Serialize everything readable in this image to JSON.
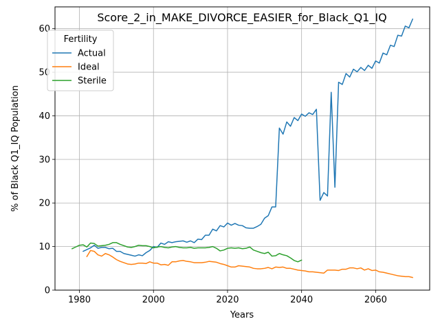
{
  "chart_data": {
    "type": "line",
    "title": "Score_2_in_MAKE_DIVORCE_EASIER_for_Black_Q1_IQ",
    "xlabel": "Years",
    "ylabel": "% of Black Q1_IQ Population",
    "xlim": [
      1973.4,
      1974.6
    ],
    "ylim": [
      0,
      65
    ],
    "xticks": [
      1980,
      2000,
      2020,
      2040,
      2060
    ],
    "yticks": [
      0,
      10,
      20,
      30,
      40,
      50,
      60
    ],
    "grid": true,
    "legend": {
      "title": "Fertility",
      "placement": "top-left"
    },
    "series": [
      {
        "name": "Actual",
        "color": "#1f77b4",
        "x": [
          1981,
          1982,
          1983,
          1984,
          1985,
          1986,
          1987,
          1988,
          1989,
          1990,
          1991,
          1992,
          1993,
          1994,
          1995,
          1996,
          1997,
          1998,
          1999,
          2000,
          2001,
          2002,
          2003,
          2004,
          2005,
          2006,
          2007,
          2008,
          2009,
          2010,
          2011,
          2012,
          2013,
          2014,
          2015,
          2016,
          2017,
          2018,
          2019,
          2020,
          2021,
          2022,
          2023,
          2024,
          2025,
          2026,
          2027,
          2028,
          2029,
          2030,
          2031,
          2032,
          2033,
          2034,
          2035,
          2036,
          2037,
          2038,
          2039,
          2040,
          2041,
          2042,
          2043,
          2044,
          2045,
          2046,
          2047,
          2048,
          2049,
          2050,
          2051,
          2052,
          2053,
          2054,
          2055,
          2056,
          2057,
          2058,
          2059,
          2060,
          2061,
          2062,
          2063,
          2064,
          2065,
          2066,
          2067,
          2068,
          2069,
          2070
        ],
        "y": [
          8.9,
          9.3,
          9.7,
          10.3,
          9.6,
          9.8,
          9.8,
          9.5,
          9.6,
          8.9,
          8.9,
          8.4,
          8.2,
          8.0,
          7.8,
          8.1,
          7.9,
          8.6,
          9.1,
          10.0,
          9.8,
          10.8,
          10.5,
          11.1,
          10.9,
          11.1,
          11.2,
          11.3,
          11.0,
          11.3,
          10.9,
          11.7,
          11.6,
          12.6,
          12.6,
          14.0,
          13.6,
          14.8,
          14.5,
          15.4,
          14.9,
          15.3,
          14.9,
          14.8,
          14.3,
          14.2,
          14.2,
          14.6,
          15.1,
          16.5,
          17.1,
          19.1,
          19.1,
          37.2,
          35.8,
          38.6,
          37.6,
          39.6,
          38.9,
          40.4,
          39.9,
          40.7,
          40.3,
          41.5,
          20.6,
          22.4,
          21.6,
          45.4,
          23.6,
          47.7,
          47.2,
          49.7,
          48.9,
          50.7,
          50.1,
          51.1,
          50.4,
          51.6,
          50.9,
          52.6,
          52.1,
          54.4,
          54.0,
          56.2,
          55.9,
          58.5,
          58.3,
          60.6,
          60.2,
          62.2
        ]
      },
      {
        "name": "Ideal",
        "color": "#ff7f0e",
        "x": [
          1982,
          1983,
          1984,
          1985,
          1986,
          1987,
          1988,
          1989,
          1990,
          1991,
          1992,
          1993,
          1994,
          1995,
          1996,
          1997,
          1998,
          1999,
          2000,
          2001,
          2002,
          2003,
          2004,
          2005,
          2006,
          2007,
          2008,
          2009,
          2010,
          2011,
          2012,
          2013,
          2014,
          2015,
          2016,
          2017,
          2018,
          2019,
          2020,
          2021,
          2022,
          2023,
          2024,
          2025,
          2026,
          2027,
          2028,
          2029,
          2030,
          2031,
          2032,
          2033,
          2034,
          2035,
          2036,
          2037,
          2038,
          2039,
          2040,
          2041,
          2042,
          2043,
          2044,
          2045,
          2046,
          2047,
          2048,
          2049,
          2050,
          2051,
          2052,
          2053,
          2054,
          2055,
          2056,
          2057,
          2058,
          2059,
          2060,
          2061,
          2062,
          2063,
          2064,
          2065,
          2066,
          2067,
          2068,
          2069,
          2070
        ],
        "y": [
          7.7,
          9.1,
          8.9,
          8.1,
          7.8,
          8.4,
          8.1,
          7.6,
          7.0,
          6.6,
          6.3,
          6.0,
          5.9,
          6.0,
          6.2,
          6.2,
          6.1,
          6.5,
          6.2,
          6.2,
          5.8,
          5.9,
          5.7,
          6.5,
          6.5,
          6.7,
          6.8,
          6.6,
          6.5,
          6.3,
          6.3,
          6.3,
          6.4,
          6.6,
          6.5,
          6.4,
          6.1,
          5.9,
          5.6,
          5.3,
          5.3,
          5.6,
          5.5,
          5.4,
          5.3,
          5.0,
          4.9,
          4.9,
          5.0,
          5.2,
          4.9,
          5.3,
          5.2,
          5.3,
          5.0,
          5.0,
          4.8,
          4.6,
          4.5,
          4.4,
          4.2,
          4.2,
          4.1,
          4.0,
          3.9,
          4.6,
          4.6,
          4.6,
          4.5,
          4.8,
          4.8,
          5.1,
          5.1,
          4.9,
          5.1,
          4.6,
          4.9,
          4.5,
          4.6,
          4.2,
          4.1,
          3.9,
          3.7,
          3.5,
          3.3,
          3.2,
          3.1,
          3.1,
          2.9
        ]
      },
      {
        "name": "Sterile",
        "color": "#2ca02c",
        "x": [
          1978,
          1979,
          1980,
          1981,
          1982,
          1983,
          1984,
          1985,
          1986,
          1987,
          1988,
          1989,
          1990,
          1991,
          1992,
          1993,
          1994,
          1995,
          1996,
          1997,
          1998,
          1999,
          2000,
          2001,
          2002,
          2003,
          2004,
          2005,
          2006,
          2007,
          2008,
          2009,
          2010,
          2011,
          2012,
          2013,
          2014,
          2015,
          2016,
          2017,
          2018,
          2019,
          2020,
          2021,
          2022,
          2023,
          2024,
          2025,
          2026,
          2027,
          2028,
          2029,
          2030,
          2031,
          2032,
          2033,
          2034,
          2035,
          2036,
          2037,
          2038,
          2039,
          2040
        ],
        "y": [
          9.5,
          9.9,
          10.3,
          10.4,
          9.9,
          10.8,
          10.7,
          10.1,
          10.2,
          10.3,
          10.5,
          10.9,
          10.9,
          10.5,
          10.2,
          9.9,
          9.8,
          10.0,
          10.3,
          10.2,
          10.2,
          10.0,
          9.7,
          9.9,
          10.0,
          9.8,
          9.7,
          9.9,
          10.0,
          9.8,
          9.7,
          9.7,
          9.8,
          9.6,
          9.7,
          9.7,
          9.7,
          9.8,
          10.0,
          9.6,
          9.0,
          9.2,
          9.6,
          9.7,
          9.6,
          9.7,
          9.5,
          9.6,
          9.9,
          9.2,
          8.9,
          8.6,
          8.4,
          8.7,
          7.8,
          7.9,
          8.4,
          8.1,
          7.9,
          7.4,
          6.8,
          6.5,
          6.9
        ]
      }
    ]
  }
}
